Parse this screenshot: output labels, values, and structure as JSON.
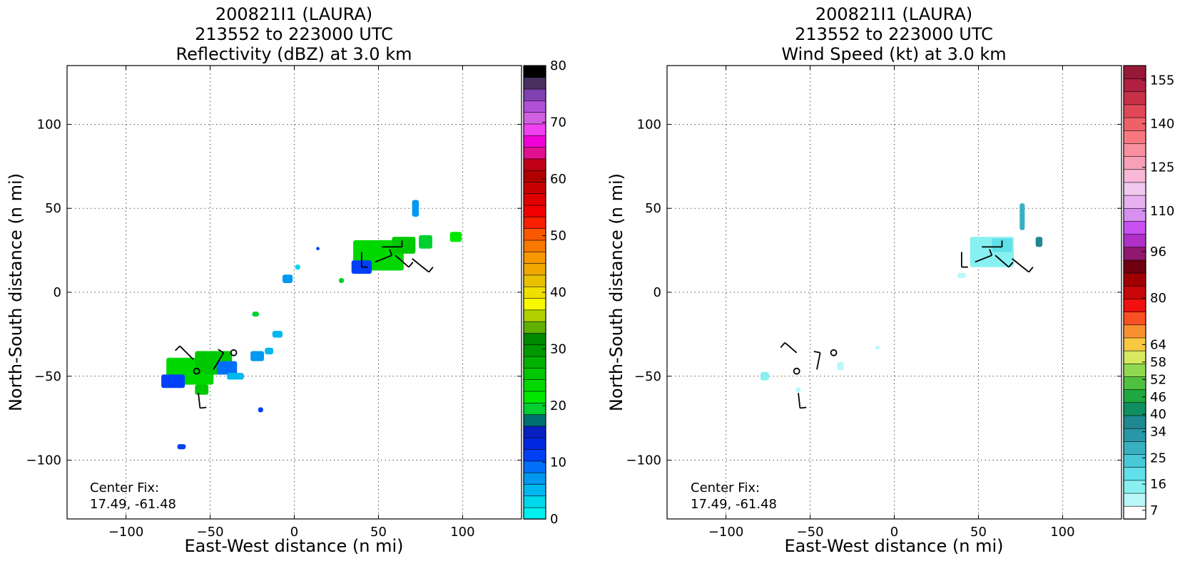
{
  "chart_data": [
    {
      "type": "heatmap",
      "title_lines": [
        "200821I1 (LAURA)",
        "213552 to 223000 UTC",
        "Reflectivity (dBZ) at 3.0 km"
      ],
      "xlabel": "East-West distance (n mi)",
      "ylabel": "North-South distance (n mi)",
      "xlim": [
        -135,
        135
      ],
      "ylim": [
        -135,
        135
      ],
      "xticks": [
        -100,
        -50,
        0,
        50,
        100
      ],
      "yticks": [
        -100,
        -50,
        0,
        50,
        100
      ],
      "xtick_labels": [
        "−100",
        "−50",
        "0",
        "50",
        "100"
      ],
      "ytick_labels": [
        "−100",
        "−50",
        "0",
        "50",
        "100"
      ],
      "grid": true,
      "annotation_lines": [
        "Center Fix:",
        "17.49, -61.48"
      ],
      "colorbar": {
        "min": 0,
        "max": 80,
        "tick_values": [
          0,
          10,
          20,
          30,
          40,
          50,
          60,
          70,
          80
        ],
        "tick_labels": [
          "0",
          "10",
          "20",
          "30",
          "40",
          "50",
          "60",
          "70",
          "80"
        ],
        "colors": [
          "#00f0f0",
          "#00d8ee",
          "#00b8f0",
          "#0098f0",
          "#0070f8",
          "#0040f8",
          "#0028e0",
          "#0820c0",
          "#007070",
          "#00d030",
          "#00e800",
          "#00d800",
          "#00c800",
          "#00b000",
          "#009800",
          "#008800",
          "#60b000",
          "#b0d000",
          "#f8f800",
          "#f0e000",
          "#e8c000",
          "#f0a800",
          "#f89800",
          "#f87800",
          "#f85800",
          "#f82000",
          "#f00000",
          "#e00000",
          "#c80000",
          "#b00000",
          "#c00018",
          "#e01090",
          "#f000d8",
          "#f040f0",
          "#d060e0",
          "#b050d8",
          "#8040b0",
          "#483060",
          "#000000"
        ]
      },
      "cells": [
        {
          "x": -62,
          "y": -47,
          "c": "#00d800",
          "w": 28,
          "h": 16
        },
        {
          "x": -48,
          "y": -42,
          "c": "#00c800",
          "w": 22,
          "h": 14
        },
        {
          "x": -72,
          "y": -53,
          "c": "#0040f8",
          "w": 14,
          "h": 8
        },
        {
          "x": -40,
          "y": -45,
          "c": "#0070f8",
          "w": 12,
          "h": 8
        },
        {
          "x": -55,
          "y": -58,
          "c": "#00c800",
          "w": 8,
          "h": 6
        },
        {
          "x": -35,
          "y": -50,
          "c": "#00b8f0",
          "w": 10,
          "h": 4
        },
        {
          "x": -22,
          "y": -38,
          "c": "#0098f0",
          "w": 8,
          "h": 6
        },
        {
          "x": -15,
          "y": -35,
          "c": "#00b8f0",
          "w": 5,
          "h": 4
        },
        {
          "x": -67,
          "y": -92,
          "c": "#0040f8",
          "w": 5,
          "h": 3
        },
        {
          "x": -20,
          "y": -70,
          "c": "#0040f8",
          "w": 3,
          "h": 3
        },
        {
          "x": -23,
          "y": -13,
          "c": "#00d030",
          "w": 4,
          "h": 3
        },
        {
          "x": -10,
          "y": -25,
          "c": "#00b8f0",
          "w": 6,
          "h": 4
        },
        {
          "x": -4,
          "y": 8,
          "c": "#0098f0",
          "w": 6,
          "h": 5
        },
        {
          "x": 2,
          "y": 15,
          "c": "#00d8ee",
          "w": 3,
          "h": 3
        },
        {
          "x": 50,
          "y": 22,
          "c": "#00d800",
          "w": 30,
          "h": 18
        },
        {
          "x": 65,
          "y": 28,
          "c": "#00c800",
          "w": 14,
          "h": 10
        },
        {
          "x": 40,
          "y": 15,
          "c": "#0040f8",
          "w": 12,
          "h": 8
        },
        {
          "x": 78,
          "y": 30,
          "c": "#00d030",
          "w": 8,
          "h": 8
        },
        {
          "x": 96,
          "y": 33,
          "c": "#00e800",
          "w": 7,
          "h": 6
        },
        {
          "x": 72,
          "y": 50,
          "c": "#0098f0",
          "w": 4,
          "h": 10
        },
        {
          "x": 28,
          "y": 7,
          "c": "#00d030",
          "w": 3,
          "h": 3
        },
        {
          "x": 14,
          "y": 26,
          "c": "#0040f8",
          "w": 2,
          "h": 2
        }
      ],
      "barbs": [
        {
          "x": -58,
          "y": -47,
          "kind": "circle"
        },
        {
          "x": -36,
          "y": -36,
          "kind": "circle"
        },
        {
          "x": -60,
          "y": -40,
          "dx": -8,
          "dy": 8
        },
        {
          "x": -48,
          "y": -46,
          "dx": 6,
          "dy": 10
        },
        {
          "x": -57,
          "y": -60,
          "dx": 1,
          "dy": -9
        },
        {
          "x": 40,
          "y": 24,
          "dx": 0,
          "dy": -9
        },
        {
          "x": 52,
          "y": 27,
          "dx": 12,
          "dy": 0
        },
        {
          "x": 60,
          "y": 22,
          "dx": 8,
          "dy": -7
        },
        {
          "x": 70,
          "y": 20,
          "dx": 10,
          "dy": -8
        },
        {
          "x": 48,
          "y": 18,
          "dx": 10,
          "dy": 4
        }
      ]
    },
    {
      "type": "heatmap",
      "title_lines": [
        "200821I1 (LAURA)",
        "213552 to 223000 UTC",
        "Wind Speed (kt) at 3.0 km"
      ],
      "xlabel": "East-West distance (n mi)",
      "ylabel": "North-South distance (n mi)",
      "xlim": [
        -135,
        135
      ],
      "ylim": [
        -135,
        135
      ],
      "xticks": [
        -100,
        -50,
        0,
        50,
        100
      ],
      "yticks": [
        -100,
        -50,
        0,
        50,
        100
      ],
      "xtick_labels": [
        "−100",
        "−50",
        "0",
        "50",
        "100"
      ],
      "ytick_labels": [
        "−100",
        "−50",
        "0",
        "50",
        "100"
      ],
      "grid": true,
      "annotation_lines": [
        "Center Fix:",
        "17.49, -61.48"
      ],
      "colorbar": {
        "min": 4,
        "max": 160,
        "tick_values": [
          7,
          16,
          25,
          34,
          40,
          46,
          52,
          58,
          64,
          80,
          96,
          110,
          125,
          140,
          155
        ],
        "tick_labels": [
          "7",
          "16",
          "25",
          "34",
          "40",
          "46",
          "52",
          "58",
          "64",
          "80",
          "96",
          "110",
          "125",
          "140",
          "155"
        ],
        "colors": [
          "#ffffff",
          "#b8f8f8",
          "#88f0f0",
          "#60e0e8",
          "#48c8d8",
          "#38b0c0",
          "#2898a8",
          "#208890",
          "#109060",
          "#20a840",
          "#50c040",
          "#90d850",
          "#d8e860",
          "#f8c840",
          "#f89030",
          "#f85020",
          "#f01010",
          "#c80808",
          "#a00000",
          "#700010",
          "#901870",
          "#b030c8",
          "#c850f0",
          "#d890f0",
          "#e8b0f0",
          "#f0c8f0",
          "#f8b8d8",
          "#f8a0b8",
          "#f890a0",
          "#f87880",
          "#f06068",
          "#e04858",
          "#c83048",
          "#b02040",
          "#981838"
        ]
      },
      "cells": [
        {
          "x": 58,
          "y": 24,
          "c": "#88f0f0",
          "w": 26,
          "h": 18
        },
        {
          "x": 64,
          "y": 28,
          "c": "#60e0e8",
          "w": 12,
          "h": 8
        },
        {
          "x": 76,
          "y": 45,
          "c": "#38b0c0",
          "w": 3,
          "h": 16
        },
        {
          "x": 86,
          "y": 30,
          "c": "#208890",
          "w": 4,
          "h": 6
        },
        {
          "x": 40,
          "y": 10,
          "c": "#b8f8f8",
          "w": 5,
          "h": 3
        },
        {
          "x": -77,
          "y": -50,
          "c": "#88f0f0",
          "w": 5,
          "h": 5
        },
        {
          "x": -57,
          "y": -58,
          "c": "#b8f8f8",
          "w": 3,
          "h": 3
        },
        {
          "x": -32,
          "y": -44,
          "c": "#b8f8f8",
          "w": 4,
          "h": 5
        },
        {
          "x": -10,
          "y": -33,
          "c": "#b8f8f8",
          "w": 3,
          "h": 2
        }
      ],
      "barbs": [
        {
          "x": -58,
          "y": -47,
          "kind": "circle"
        },
        {
          "x": -36,
          "y": -36,
          "kind": "circle"
        },
        {
          "x": -58,
          "y": -36,
          "dx": -7,
          "dy": 6
        },
        {
          "x": -46,
          "y": -46,
          "dx": 2,
          "dy": 10
        },
        {
          "x": -57,
          "y": -60,
          "dx": 1,
          "dy": -9
        },
        {
          "x": 40,
          "y": 24,
          "dx": 0,
          "dy": -9
        },
        {
          "x": 52,
          "y": 27,
          "dx": 12,
          "dy": 0
        },
        {
          "x": 60,
          "y": 22,
          "dx": 8,
          "dy": -7
        },
        {
          "x": 70,
          "y": 20,
          "dx": 10,
          "dy": -8
        },
        {
          "x": 48,
          "y": 18,
          "dx": 10,
          "dy": 4
        }
      ]
    }
  ]
}
